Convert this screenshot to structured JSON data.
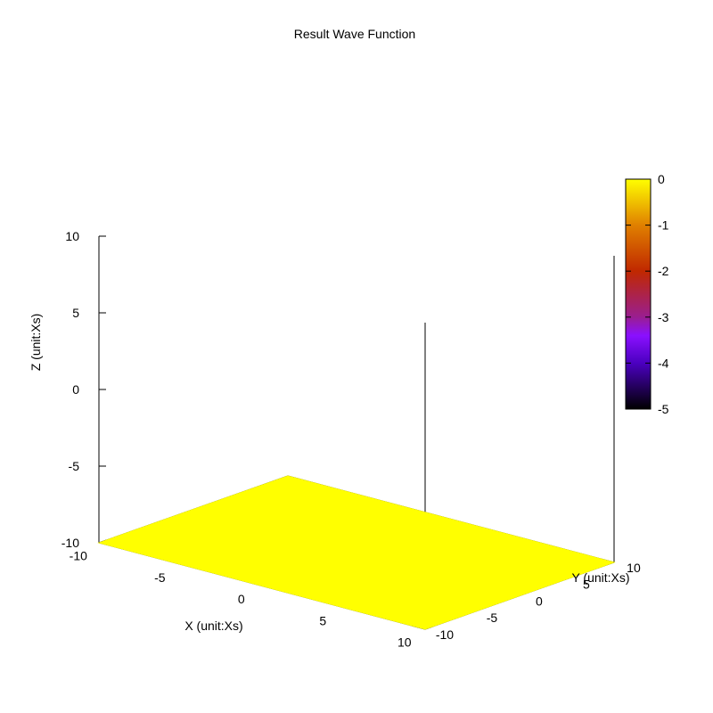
{
  "chart_data": {
    "type": "surface3d",
    "title": "Result Wave Function",
    "xlabel": "X (unit:Xs)",
    "ylabel": "Y (unit:Xs)",
    "zlabel": "Z (unit:Xs)",
    "xlim": [
      -10,
      10
    ],
    "ylim": [
      -10,
      10
    ],
    "zlim": [
      -10,
      10
    ],
    "x_ticks": [
      -10,
      -5,
      0,
      5,
      10
    ],
    "y_ticks": [
      -10,
      -5,
      0,
      5,
      10
    ],
    "z_ticks": [
      -10,
      -5,
      0,
      5,
      10
    ],
    "surface": {
      "x": [
        -10,
        10
      ],
      "y": [
        -10,
        10
      ],
      "z_level": -10,
      "value": 0,
      "color": "#ffff00"
    },
    "colorbar": {
      "range": [
        -5,
        0
      ],
      "ticks": [
        0,
        -1,
        -2,
        -3,
        -4,
        -5
      ],
      "palette": "gnuplot",
      "stops": [
        {
          "value": -5,
          "color": "#000000"
        },
        {
          "value": -4,
          "color": "#4b00c0"
        },
        {
          "value": -3.4,
          "color": "#8a10ff"
        },
        {
          "value": -3,
          "color": "#9a1e90"
        },
        {
          "value": -2,
          "color": "#c02800"
        },
        {
          "value": -1,
          "color": "#e08000"
        },
        {
          "value": 0,
          "color": "#ffff00"
        }
      ]
    },
    "grid": false
  }
}
